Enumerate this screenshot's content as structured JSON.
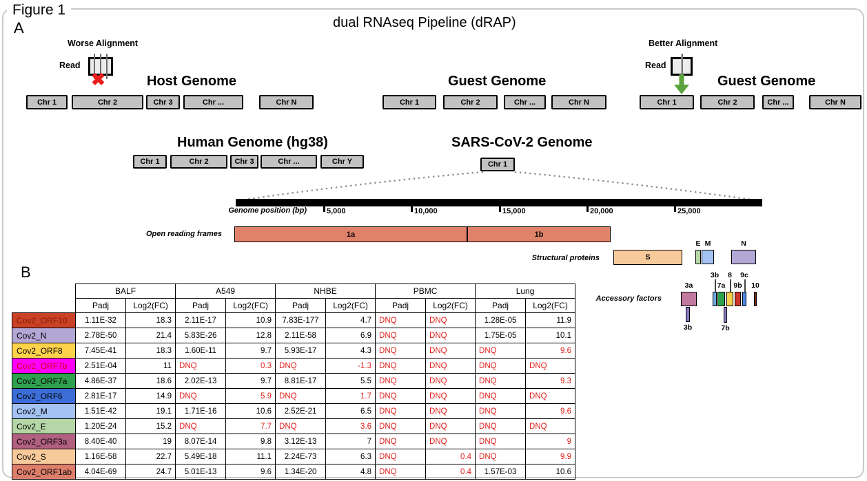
{
  "figure_label": "Figure 1",
  "title": "dual RNAseq Pipeline (dRAP)",
  "colors": {
    "chromosome_fill": "#C2C2C2",
    "red_x": "#EA1C1C",
    "arrow_green": "#5BA33C",
    "dnq_red": "#E0201A"
  },
  "panel_a": {
    "label": "A",
    "worse": {
      "caption": "Worse Alignment",
      "read_label": "Read",
      "genome_title": "Host Genome",
      "chromosomes": [
        "Chr 1",
        "Chr 2",
        "Chr 3",
        "Chr ...",
        "Chr N"
      ]
    },
    "guest_mid": {
      "genome_title": "Guest Genome",
      "chromosomes": [
        "Chr 1",
        "Chr 2",
        "Chr ...",
        "Chr N"
      ]
    },
    "better": {
      "caption": "Better Alignment",
      "read_label": "Read",
      "genome_title": "Guest Genome",
      "chromosomes": [
        "Chr 1",
        "Chr 2",
        "Chr ...",
        "Chr N"
      ]
    },
    "human": {
      "genome_title": "Human Genome (hg38)",
      "chromosomes": [
        "Chr 1",
        "Chr 2",
        "Chr 3",
        "Chr ...",
        "Chr Y"
      ]
    },
    "sars": {
      "genome_title": "SARS-CoV-2 Genome",
      "chromosomes": [
        "Chr 1"
      ]
    },
    "axis": {
      "label": "Genome position (bp)",
      "ticks": [
        "5,000",
        "10,000",
        "15,000",
        "20,000",
        "25,000"
      ]
    },
    "orf_row": {
      "label": "Open reading frames",
      "segments": [
        {
          "name": "1a",
          "color": "#E0826A"
        },
        {
          "name": "1b",
          "color": "#E0826A"
        }
      ]
    },
    "structural_row": {
      "label": "Structural proteins",
      "segments": [
        {
          "name": "S",
          "color": "#F8CA9B"
        },
        {
          "name": "E",
          "color": "#B5D7A7"
        },
        {
          "name": "M",
          "color": "#A4C3F3"
        },
        {
          "name": "N",
          "color": "#B3A7D5"
        }
      ]
    },
    "accessory_row": {
      "label": "Accessory factors",
      "segments": [
        {
          "name": "3a",
          "color": "#C27BA0"
        },
        {
          "name": "3b",
          "color": "#8E7CC3"
        },
        {
          "name": "3b",
          "color": "#6FA8DC"
        },
        {
          "name": "7a",
          "color": "#2FA14E"
        },
        {
          "name": "7b",
          "color": "#8E7CC3"
        },
        {
          "name": "8",
          "color": "#F6D04D"
        },
        {
          "name": "9b",
          "color": "#CD3428"
        },
        {
          "name": "9c",
          "color": "#4A86E8"
        },
        {
          "name": "10",
          "color": "#7E2B0E"
        }
      ]
    }
  },
  "panel_b": {
    "label": "B",
    "table": {
      "col_groups": [
        "BALF",
        "A549",
        "NHBE",
        "PBMC",
        "Lung"
      ],
      "sub_headers": [
        "Padj",
        "Log2(FC)"
      ],
      "rows": [
        {
          "gene": "Cov2_ORF10",
          "bg": "#CB4125",
          "fg": "#7F1D08",
          "cells": [
            [
              "1.11E-32",
              0
            ],
            [
              "18.3",
              0
            ],
            [
              "2.11E-17",
              0
            ],
            [
              "10.9",
              0
            ],
            [
              "7.83E-177",
              0
            ],
            [
              "4.7",
              0
            ],
            [
              "DNQ",
              1
            ],
            [
              "DNQ",
              1
            ],
            [
              "1.28E-05",
              0
            ],
            [
              "11.9",
              0
            ]
          ]
        },
        {
          "gene": "Cov2_N",
          "bg": "#B3A7D5",
          "fg": "#000000",
          "cells": [
            [
              "2.78E-50",
              0
            ],
            [
              "21.4",
              0
            ],
            [
              "5.83E-26",
              0
            ],
            [
              "12.8",
              0
            ],
            [
              "2.11E-58",
              0
            ],
            [
              "6.9",
              0
            ],
            [
              "DNQ",
              1
            ],
            [
              "DNQ",
              1
            ],
            [
              "1.75E-05",
              0
            ],
            [
              "10.1",
              0
            ]
          ]
        },
        {
          "gene": "Cov2_ORF8",
          "bg": "#FFD24B",
          "fg": "#000000",
          "cells": [
            [
              "7.45E-41",
              0
            ],
            [
              "18.3",
              0
            ],
            [
              "1.60E-11",
              0
            ],
            [
              "9.7",
              0
            ],
            [
              "5.93E-17",
              0
            ],
            [
              "4.3",
              0
            ],
            [
              "DNQ",
              1
            ],
            [
              "DNQ",
              1
            ],
            [
              "DNQ",
              1
            ],
            [
              "9.6",
              1
            ]
          ]
        },
        {
          "gene": "Cov2_ORF7b",
          "bg": "#FD00FE",
          "fg": "#D0021B",
          "cells": [
            [
              "2.51E-04",
              0
            ],
            [
              "11",
              0
            ],
            [
              "DNQ",
              1
            ],
            [
              "0.3",
              1
            ],
            [
              "DNQ",
              1
            ],
            [
              "-1.3",
              1
            ],
            [
              "DNQ",
              1
            ],
            [
              "DNQ",
              1
            ],
            [
              "DNQ",
              1
            ],
            [
              "DNQ",
              1
            ]
          ]
        },
        {
          "gene": "Cov2_ORF7a",
          "bg": "#2FA14E",
          "fg": "#000000",
          "cells": [
            [
              "4.86E-37",
              0
            ],
            [
              "18.6",
              0
            ],
            [
              "2.02E-13",
              0
            ],
            [
              "9.7",
              0
            ],
            [
              "8.81E-17",
              0
            ],
            [
              "5.5",
              0
            ],
            [
              "DNQ",
              1
            ],
            [
              "DNQ",
              1
            ],
            [
              "DNQ",
              1
            ],
            [
              "9.3",
              1
            ]
          ]
        },
        {
          "gene": "Cov2_ORF6",
          "bg": "#3D6ED8",
          "fg": "#000000",
          "cells": [
            [
              "2.81E-17",
              0
            ],
            [
              "14.9",
              0
            ],
            [
              "DNQ",
              1
            ],
            [
              "5.9",
              1
            ],
            [
              "DNQ",
              1
            ],
            [
              "1.7",
              1
            ],
            [
              "DNQ",
              1
            ],
            [
              "DNQ",
              1
            ],
            [
              "DNQ",
              1
            ],
            [
              "DNQ",
              1
            ]
          ]
        },
        {
          "gene": "Cov2_M",
          "bg": "#A4C3F3",
          "fg": "#000000",
          "cells": [
            [
              "1.51E-42",
              0
            ],
            [
              "19.1",
              0
            ],
            [
              "1.71E-16",
              0
            ],
            [
              "10.6",
              0
            ],
            [
              "2.52E-21",
              0
            ],
            [
              "6.5",
              0
            ],
            [
              "DNQ",
              1
            ],
            [
              "DNQ",
              1
            ],
            [
              "DNQ",
              1
            ],
            [
              "9.6",
              1
            ]
          ]
        },
        {
          "gene": "Cov2_E",
          "bg": "#B5D7A7",
          "fg": "#000000",
          "cells": [
            [
              "1.20E-24",
              0
            ],
            [
              "15.2",
              0
            ],
            [
              "DNQ",
              1
            ],
            [
              "7.7",
              1
            ],
            [
              "DNQ",
              1
            ],
            [
              "3.6",
              1
            ],
            [
              "DNQ",
              1
            ],
            [
              "DNQ",
              1
            ],
            [
              "DNQ",
              1
            ],
            [
              "DNQ",
              1
            ]
          ]
        },
        {
          "gene": "Cov2_ORF3a",
          "bg": "#B2607F",
          "fg": "#000000",
          "cells": [
            [
              "8.40E-40",
              0
            ],
            [
              "19",
              0
            ],
            [
              "8.07E-14",
              0
            ],
            [
              "9.8",
              0
            ],
            [
              "3.12E-13",
              0
            ],
            [
              "7",
              0
            ],
            [
              "DNQ",
              1
            ],
            [
              "DNQ",
              1
            ],
            [
              "DNQ",
              1
            ],
            [
              "9",
              1
            ]
          ]
        },
        {
          "gene": "Cov2_S",
          "bg": "#F8CA9B",
          "fg": "#000000",
          "cells": [
            [
              "1.16E-58",
              0
            ],
            [
              "22.7",
              0
            ],
            [
              "5.49E-18",
              0
            ],
            [
              "11.1",
              0
            ],
            [
              "2.24E-73",
              0
            ],
            [
              "6.3",
              0
            ],
            [
              "DNQ",
              1
            ],
            [
              "0.4",
              1
            ],
            [
              "DNQ",
              1
            ],
            [
              "9.9",
              1
            ]
          ]
        },
        {
          "gene": "Cov2_ORF1ab",
          "bg": "#DC7E6A",
          "fg": "#000000",
          "cells": [
            [
              "4.04E-69",
              0
            ],
            [
              "24.7",
              0
            ],
            [
              "5.01E-13",
              0
            ],
            [
              "9.6",
              0
            ],
            [
              "1.34E-20",
              0
            ],
            [
              "4.8",
              0
            ],
            [
              "DNQ",
              1
            ],
            [
              "0.4",
              1
            ],
            [
              "1.57E-03",
              0
            ],
            [
              "10.6",
              0
            ]
          ]
        }
      ]
    }
  }
}
